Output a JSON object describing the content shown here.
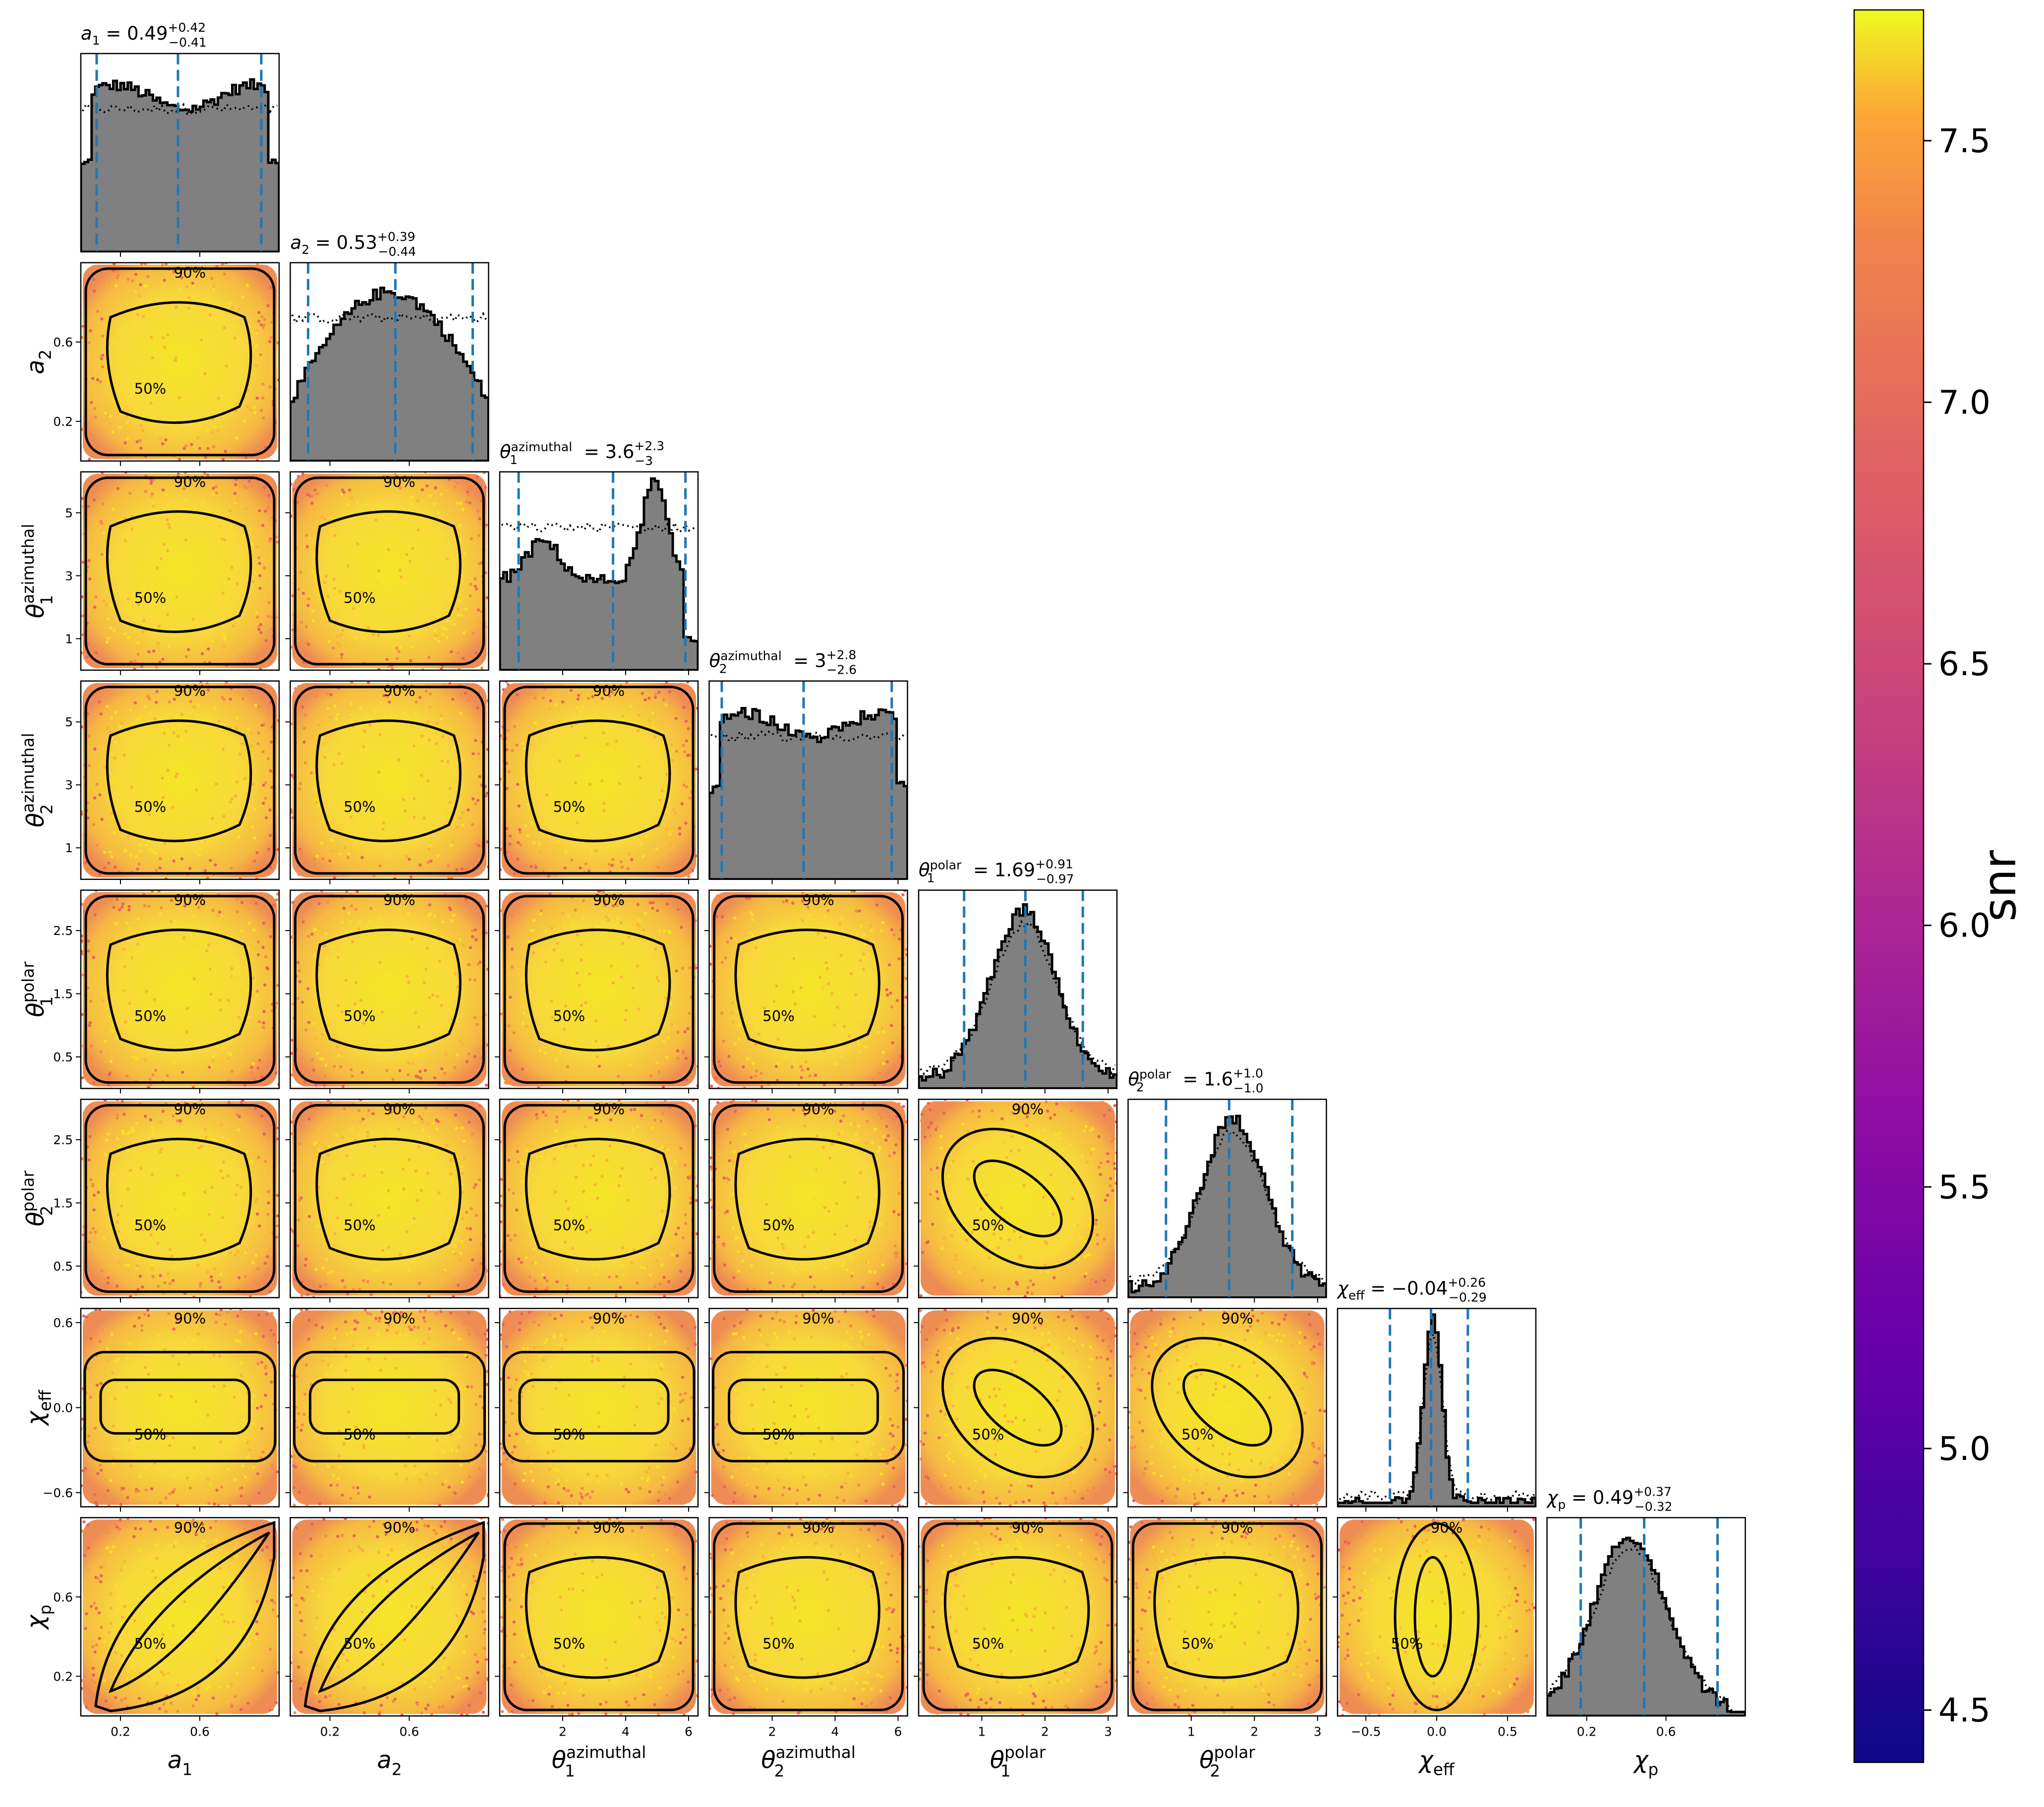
{
  "chart_data": {
    "type": "corner",
    "parameters": [
      {
        "key": "a1",
        "base": "a",
        "sub": "1",
        "sup": "",
        "range": [
          0,
          1
        ],
        "ticks": [
          0.2,
          0.6
        ],
        "title": {
          "median": "0.49",
          "plus": "+0.42",
          "minus": "−0.41"
        },
        "quantiles": [
          0.08,
          0.49,
          0.91
        ],
        "hist_shape": "flat"
      },
      {
        "key": "a2",
        "base": "a",
        "sub": "2",
        "sup": "",
        "range": [
          0,
          1
        ],
        "ticks": [
          0.2,
          0.6
        ],
        "title": {
          "median": "0.53",
          "plus": "+0.39",
          "minus": "−0.44"
        },
        "quantiles": [
          0.09,
          0.53,
          0.92
        ],
        "hist_shape": "hump"
      },
      {
        "key": "theta1_az",
        "base": "θ",
        "sub": "1",
        "sup": "azimuthal",
        "range": [
          0,
          6.3
        ],
        "ticks": [
          2,
          4,
          6
        ],
        "title": {
          "median": "3.6",
          "plus": "+2.3",
          "minus": "−3"
        },
        "quantiles": [
          0.6,
          3.6,
          5.9
        ],
        "hist_shape": "bimodal"
      },
      {
        "key": "theta2_az",
        "base": "θ",
        "sub": "2",
        "sup": "azimuthal",
        "range": [
          0,
          6.3
        ],
        "ticks": [
          2,
          4,
          6
        ],
        "title": {
          "median": "3",
          "plus": "+2.8",
          "minus": "−2.6"
        },
        "quantiles": [
          0.4,
          3.0,
          5.8
        ],
        "hist_shape": "flat"
      },
      {
        "key": "theta1_pol",
        "base": "θ",
        "sub": "1",
        "sup": "polar",
        "range": [
          0,
          3.14
        ],
        "ticks": [
          1,
          2,
          3
        ],
        "title": {
          "median": "1.69",
          "plus": "+0.91",
          "minus": "−0.97"
        },
        "quantiles": [
          0.72,
          1.69,
          2.6
        ],
        "hist_shape": "peak"
      },
      {
        "key": "theta2_pol",
        "base": "θ",
        "sub": "2",
        "sup": "polar",
        "range": [
          0,
          3.14
        ],
        "ticks": [
          1,
          2,
          3
        ],
        "title": {
          "median": "1.6",
          "plus": "+1.0",
          "minus": "−1.0"
        },
        "quantiles": [
          0.6,
          1.6,
          2.6
        ],
        "hist_shape": "peak"
      },
      {
        "key": "chi_eff",
        "base": "χ",
        "sub": "eff",
        "sup": "",
        "range": [
          -0.7,
          0.7
        ],
        "ticks": [
          -0.5,
          0.0,
          0.5
        ],
        "title": {
          "median": "−0.04",
          "plus": "+0.26",
          "minus": "−0.29"
        },
        "quantiles": [
          -0.33,
          -0.04,
          0.22
        ],
        "hist_shape": "sharp"
      },
      {
        "key": "chi_p",
        "base": "χ",
        "sub": "p",
        "sup": "",
        "range": [
          0,
          1
        ],
        "ticks": [
          0.2,
          0.6
        ],
        "title": {
          "median": "0.49",
          "plus": "+0.37",
          "minus": "−0.32"
        },
        "quantiles": [
          0.17,
          0.49,
          0.86
        ],
        "hist_shape": "skew"
      }
    ],
    "y_ticks": {
      "a2": [
        0.2,
        0.6
      ],
      "theta1_az": [
        1,
        3,
        5
      ],
      "theta2_az": [
        1,
        3,
        5
      ],
      "theta1_pol": [
        0.5,
        1.5,
        2.5
      ],
      "theta2_pol": [
        0.5,
        1.5,
        2.5
      ],
      "chi_eff": [
        -0.6,
        0.0,
        0.6
      ],
      "chi_p": [
        0.2,
        0.6
      ]
    },
    "y_tick_labels": {
      "a2": [
        "0.2",
        "0.6"
      ],
      "theta1_az": [
        "1",
        "3",
        "5"
      ],
      "theta2_az": [
        "1",
        "3",
        "5"
      ],
      "theta1_pol": [
        "0.5",
        "1.5",
        "2.5"
      ],
      "theta2_pol": [
        "0.5",
        "1.5",
        "2.5"
      ],
      "chi_eff": [
        "−0.6",
        "0.0",
        "0.6"
      ],
      "chi_p": [
        "0.2",
        "0.6"
      ]
    },
    "x_tick_labels": {
      "a1": [
        "0.2",
        "0.6"
      ],
      "a2": [
        "0.2",
        "0.6"
      ],
      "theta1_az": [
        "2",
        "4",
        "6"
      ],
      "theta2_az": [
        "2",
        "4",
        "6"
      ],
      "theta1_pol": [
        "1",
        "2",
        "3"
      ],
      "theta2_pol": [
        "1",
        "2",
        "3"
      ],
      "chi_eff": [
        "−0.5",
        "0.0",
        "0.5"
      ],
      "chi_p": [
        "0.2",
        "0.6"
      ]
    },
    "contour_levels": [
      "50%",
      "90%"
    ],
    "colorbar": {
      "label": "snr",
      "range": [
        4.4,
        7.75
      ],
      "ticks": [
        4.5,
        5.0,
        5.5,
        6.0,
        6.5,
        7.0,
        7.5
      ],
      "tick_labels": [
        "4.5",
        "5.0",
        "5.5",
        "6.0",
        "6.5",
        "7.0",
        "7.5"
      ],
      "colormap": "plasma"
    },
    "colors": {
      "histogram_fill": "#808080",
      "histogram_edge": "#000000",
      "quantile_lines": "#1f77b4",
      "contour": "#000000",
      "scatter_high": "#f0f921",
      "scatter_low": "#e16462"
    }
  }
}
